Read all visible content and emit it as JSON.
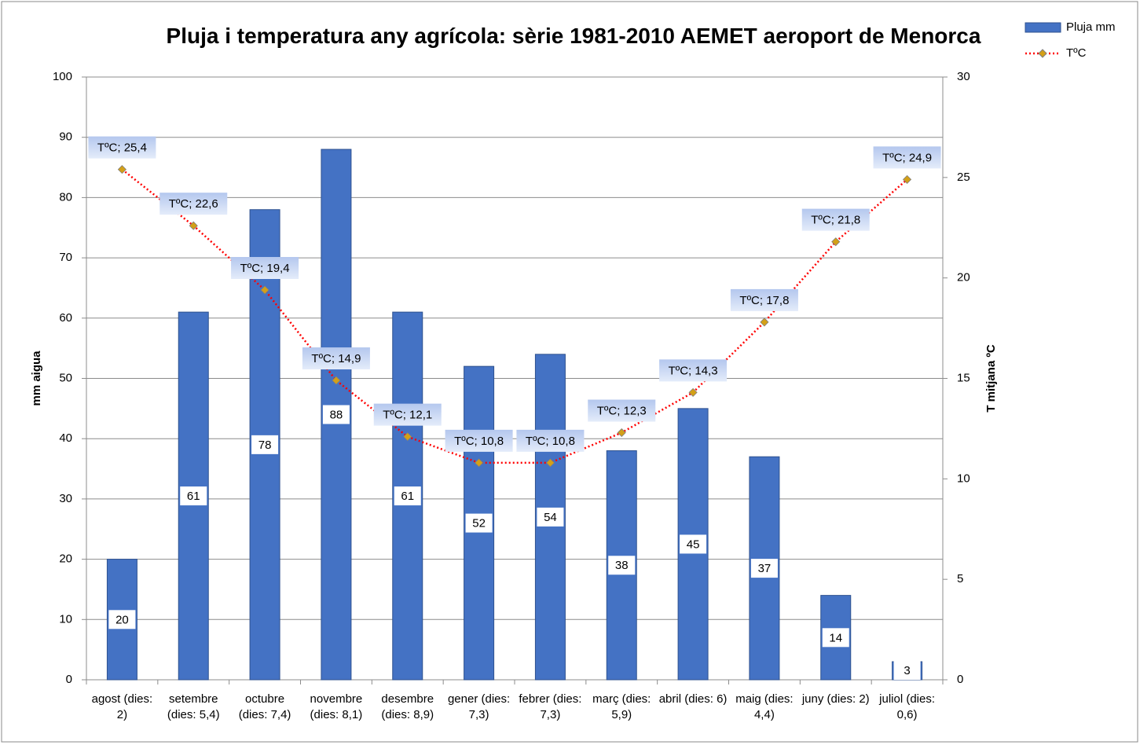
{
  "chart_data": {
    "type": "bar-line",
    "title": "Pluja i temperatura any agrícola: sèrie 1981-2010 AEMET aeroport de Menorca",
    "categories": [
      "agost (dies: 2)",
      "setembre (dies: 5,4)",
      "octubre (dies: 7,4)",
      "novembre (dies: 8,1)",
      "desembre (dies: 8,9)",
      "gener (dies: 7,3)",
      "febrer (dies: 7,3)",
      "març (dies: 5,9)",
      "abril (dies: 6)",
      "maig (dies: 4,4)",
      "juny (dies: 2)",
      "juliol (dies: 0,6)"
    ],
    "series": [
      {
        "name": "Pluja mm",
        "color": "#4472c4",
        "values": [
          20,
          61,
          78,
          88,
          61,
          52,
          54,
          38,
          45,
          37,
          14,
          3
        ]
      },
      {
        "name": "TºC",
        "color": "#ff0000",
        "marker_color": "#d4a017",
        "axis": "y2",
        "values": [
          25.4,
          22.6,
          19.4,
          14.9,
          12.1,
          10.8,
          10.8,
          12.3,
          14.3,
          17.8,
          21.8,
          24.9
        ],
        "value_labels": [
          "TºC; 25,4",
          "TºC; 22,6",
          "TºC; 19,4",
          "TºC; 14,9",
          "TºC; 12,1",
          "TºC; 10,8",
          "TºC; 10,8",
          "TºC; 12,3",
          "TºC; 14,3",
          "TºC; 17,8",
          "TºC; 21,8",
          "TºC; 24,9"
        ]
      }
    ],
    "ylabel": "mm aigua",
    "y2label": "T mitjana ºC",
    "ylim": [
      0,
      100
    ],
    "yticks": [
      0,
      10,
      20,
      30,
      40,
      50,
      60,
      70,
      80,
      90,
      100
    ],
    "y2lim": [
      0,
      30
    ],
    "y2ticks": [
      0,
      5,
      10,
      15,
      20,
      25,
      30
    ],
    "grid": true,
    "legend": "top-right"
  }
}
